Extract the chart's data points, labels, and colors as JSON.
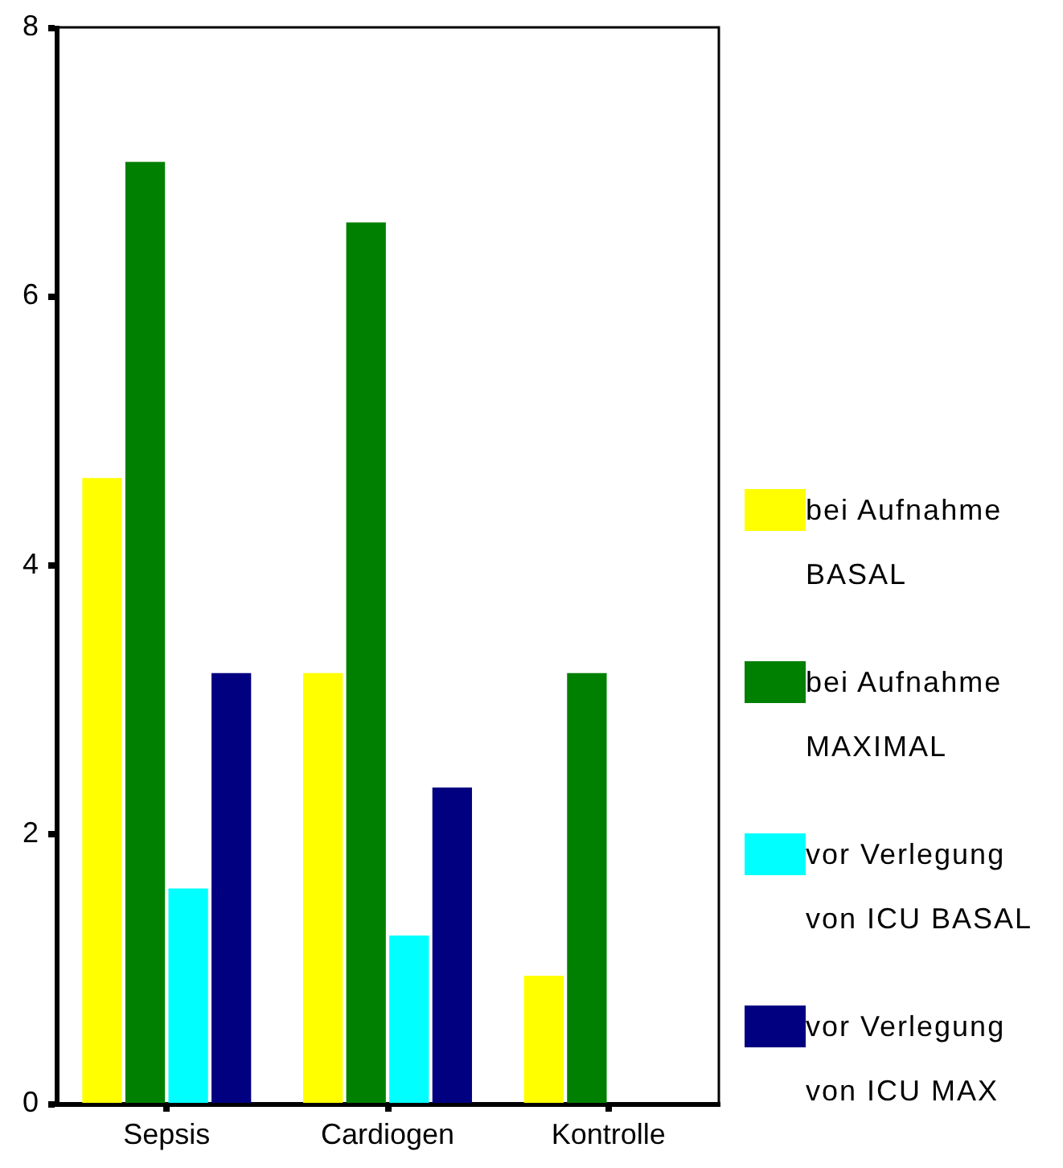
{
  "chart_data": {
    "type": "bar",
    "categories": [
      "Sepsis",
      "Cardiogen",
      "Kontrolle"
    ],
    "series": [
      {
        "name": "bei Aufnahme BASAL",
        "color": "#ffff00",
        "values": [
          4.65,
          3.2,
          0.95
        ]
      },
      {
        "name": "bei Aufnahme MAXIMAL",
        "color": "#008000",
        "values": [
          7.0,
          6.55,
          3.2
        ]
      },
      {
        "name": "vor Verlegung von ICU BASAL",
        "color": "#00ffff",
        "values": [
          1.6,
          1.25,
          null
        ]
      },
      {
        "name": "vor Verlegung von ICU MAX",
        "color": "#000080",
        "values": [
          3.2,
          2.35,
          null
        ]
      }
    ],
    "ylim": [
      0,
      8
    ],
    "yticks": [
      0,
      2,
      4,
      6,
      8
    ],
    "legend": "right",
    "grid": false
  }
}
